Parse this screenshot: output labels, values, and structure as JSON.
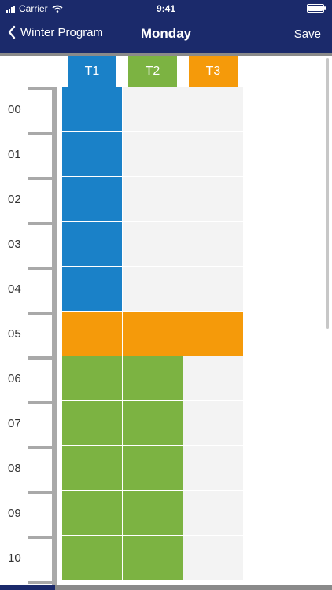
{
  "status_bar": {
    "carrier": "Carrier",
    "time": "9:41"
  },
  "nav": {
    "back_label": "Winter Program",
    "title": "Monday",
    "save_label": "Save"
  },
  "columns": [
    {
      "label": "T1",
      "color": "#1a81c8"
    },
    {
      "label": "T2",
      "color": "#7cb342"
    },
    {
      "label": "T3",
      "color": "#f59a0a"
    }
  ],
  "hours": [
    "00",
    "01",
    "02",
    "03",
    "04",
    "05",
    "06",
    "07",
    "08",
    "09",
    "10"
  ],
  "schedule": [
    "T1",
    "T1",
    "T1",
    "T1",
    "T1",
    "T3",
    "T2",
    "T2",
    "T2",
    "T2",
    "T2"
  ],
  "colors": {
    "header": "#1b2a6b",
    "empty_cell": "#f3f3f3",
    "ruler": "#a9a9a9"
  }
}
